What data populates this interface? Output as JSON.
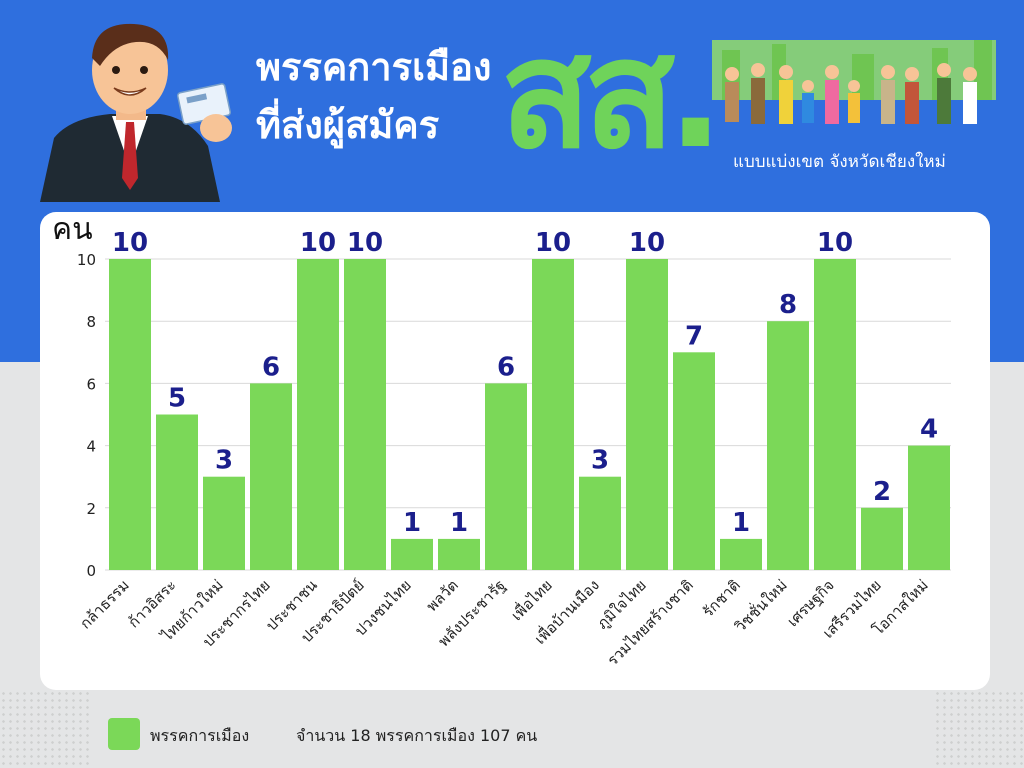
{
  "header": {
    "title_line1": "พรรคการเมือง",
    "title_line2": "ที่ส่งผู้สมัคร",
    "big_text": "สส.",
    "subtitle": "แบบแบ่งเขต จังหวัดเชียงใหม่"
  },
  "colors": {
    "blue_band": "#2f6fde",
    "bar": "#7bd858",
    "accent_green": "#6fd35a",
    "value_label": "#1b1f8c"
  },
  "chart_data": {
    "type": "bar",
    "ylabel": "คน",
    "xlabel": "",
    "ylim": [
      0,
      10
    ],
    "yticks": [
      0,
      2,
      4,
      6,
      8,
      10
    ],
    "categories": [
      "กล้าธรรม",
      "ก้าวอิสระ",
      "ไทยก้าวใหม่",
      "ประชากรไทย",
      "ประชาชน",
      "ประชาธิปัตย์",
      "ปวงชนไทย",
      "พลวัต",
      "พลังประชารัฐ",
      "เพื่อไทย",
      "เพื่อบ้านเมือง",
      "ภูมิใจไทย",
      "รวมไทยสร้างชาติ",
      "รักชาติ",
      "วิชชั่นใหม่",
      "เศรษฐกิจ",
      "เสรีรวมไทย",
      "โอกาสใหม่"
    ],
    "series": [
      {
        "name": "พรรคการเมือง",
        "values": [
          10,
          5,
          3,
          6,
          10,
          10,
          1,
          1,
          6,
          10,
          3,
          10,
          7,
          1,
          8,
          10,
          2,
          4
        ]
      }
    ],
    "grid": true,
    "legend_position": "bottom-left"
  },
  "legend": {
    "label": "พรรคการเมือง",
    "note": "จำนวน  18  พรรคการเมือง   107  คน"
  }
}
